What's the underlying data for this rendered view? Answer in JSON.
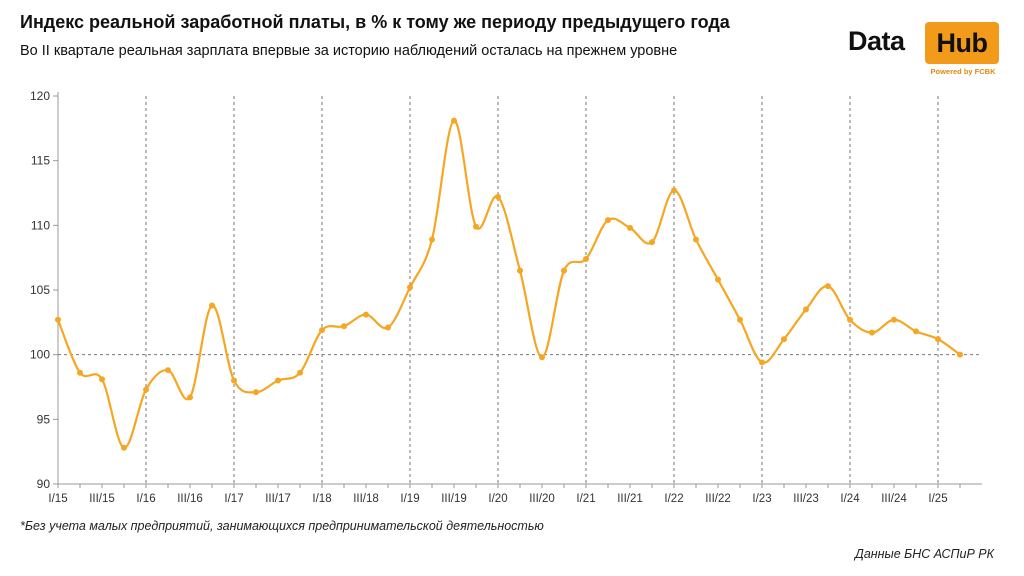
{
  "header": {
    "title": "Индекс реальной заработной платы, в % к тому же периоду предыдущего года",
    "subtitle": "Во II квартале реальная зарплата впервые за историю наблюдений осталась на прежнем уровне"
  },
  "logo": {
    "word1": "Data",
    "word2": "Hub",
    "tagline": "Powered by FCBK",
    "accent_color": "#f29a1a"
  },
  "footer": {
    "footnote": "*Без учета малых предприятий, занимающихся предпринимательской деятельностью",
    "source": "Данные БНС АСПиР РК"
  },
  "chart_data": {
    "type": "line",
    "title": "Индекс реальной заработной платы, в % к тому же периоду предыдущего года",
    "ylim": [
      90,
      120
    ],
    "yticks": [
      90,
      95,
      100,
      105,
      110,
      115,
      120
    ],
    "reference_line": 100,
    "line_color": "#f5a623",
    "tick_labels": [
      "I/15",
      "III/15",
      "I/16",
      "III/16",
      "I/17",
      "III/17",
      "I/18",
      "III/18",
      "I/19",
      "III/19",
      "I/20",
      "III/20",
      "I/21",
      "III/21",
      "I/22",
      "III/22",
      "I/23",
      "III/23",
      "I/24",
      "III/24",
      "I/25"
    ],
    "year_dividers": [
      "I/16",
      "I/17",
      "I/18",
      "I/19",
      "I/20",
      "I/21",
      "I/22",
      "I/23",
      "I/24",
      "I/25"
    ],
    "series": [
      {
        "name": "Индекс реальной заработной платы",
        "x": [
          "I/15",
          "II/15",
          "III/15",
          "IV/15",
          "I/16",
          "II/16",
          "III/16",
          "IV/16",
          "I/17",
          "II/17",
          "III/17",
          "IV/17",
          "I/18",
          "II/18",
          "III/18",
          "IV/18",
          "I/19",
          "II/19",
          "III/19",
          "IV/19",
          "I/20",
          "II/20",
          "III/20",
          "IV/20",
          "I/21",
          "II/21",
          "III/21",
          "IV/21",
          "I/22",
          "II/22",
          "III/22",
          "IV/22",
          "I/23",
          "II/23",
          "III/23",
          "IV/23",
          "I/24",
          "II/24",
          "III/24",
          "IV/24",
          "I/25",
          "II/25"
        ],
        "values": [
          102.7,
          98.6,
          98.1,
          92.8,
          97.3,
          98.8,
          96.7,
          103.8,
          98.0,
          97.1,
          98.0,
          98.6,
          101.9,
          102.2,
          103.1,
          102.1,
          105.2,
          108.9,
          118.1,
          109.9,
          112.2,
          106.5,
          99.8,
          106.5,
          107.4,
          110.4,
          109.8,
          108.7,
          112.7,
          108.9,
          105.8,
          102.7,
          99.4,
          101.2,
          103.5,
          105.3,
          102.7,
          101.7,
          102.7,
          101.8,
          101.2,
          100.0
        ]
      }
    ]
  }
}
